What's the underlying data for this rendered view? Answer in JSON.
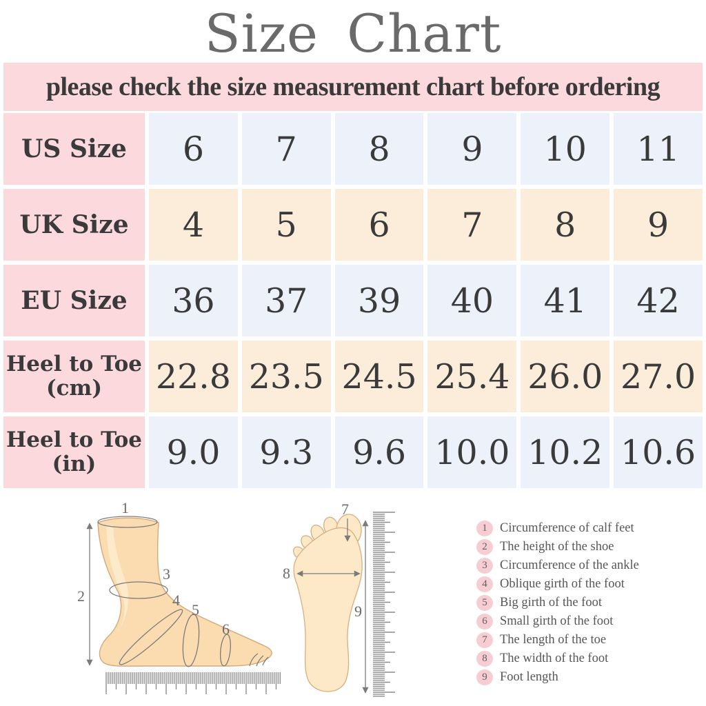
{
  "title": "Size Chart",
  "banner": {
    "text": "please check the size measurement chart before ordering"
  },
  "table": {
    "rows": [
      {
        "header_lines": [
          "US Size"
        ],
        "band": "blue",
        "values": [
          "6",
          "7",
          "8",
          "9",
          "10",
          "11"
        ]
      },
      {
        "header_lines": [
          "UK Size"
        ],
        "band": "peach",
        "values": [
          "4",
          "5",
          "6",
          "7",
          "8",
          "9"
        ]
      },
      {
        "header_lines": [
          "EU Size"
        ],
        "band": "blue",
        "values": [
          "36",
          "37",
          "39",
          "40",
          "41",
          "42"
        ]
      },
      {
        "header_lines": [
          "Heel to Toe",
          "(cm)"
        ],
        "band": "peach",
        "values": [
          "22.8",
          "23.5",
          "24.5",
          "25.4",
          "26.0",
          "27.0"
        ]
      },
      {
        "header_lines": [
          "Heel to Toe",
          "(in)"
        ],
        "band": "blue",
        "values": [
          "9.0",
          "9.3",
          "9.6",
          "10.0",
          "10.2",
          "10.6"
        ]
      }
    ]
  },
  "diagrams": {
    "side_view": {
      "markers": [
        "1",
        "2",
        "3",
        "4",
        "5",
        "6"
      ]
    },
    "sole_view": {
      "markers": [
        "7",
        "8",
        "9"
      ]
    }
  },
  "legend": {
    "items": [
      {
        "num": "1",
        "label": "Circumference of calf feet"
      },
      {
        "num": "2",
        "label": "The height of the shoe"
      },
      {
        "num": "3",
        "label": "Circumference of the ankle"
      },
      {
        "num": "4",
        "label": "Oblique girth of the foot"
      },
      {
        "num": "5",
        "label": "Big girth of the foot"
      },
      {
        "num": "6",
        "label": "Small girth of the foot"
      },
      {
        "num": "7",
        "label": "The length of the toe"
      },
      {
        "num": "8",
        "label": "The width of the foot"
      },
      {
        "num": "9",
        "label": "Foot length"
      }
    ]
  },
  "colors": {
    "pink": "#fbd9dd",
    "blue": "#ecf1fa",
    "peach": "#fcedda",
    "title": "#6a6a6a",
    "text": "#3a3a3a",
    "legend_circle": "#f6cdd3",
    "legend_text": "#565656",
    "foot_fill": "#fbdcb0",
    "foot_light": "#fde9c8"
  },
  "chart_data": {
    "type": "table",
    "title": "Size Chart",
    "note": "please check the size measurement chart before ordering",
    "rows": [
      {
        "label": "US Size",
        "values": [
          6,
          7,
          8,
          9,
          10,
          11
        ]
      },
      {
        "label": "UK Size",
        "values": [
          4,
          5,
          6,
          7,
          8,
          9
        ]
      },
      {
        "label": "EU Size",
        "values": [
          36,
          37,
          39,
          40,
          41,
          42
        ]
      },
      {
        "label": "Heel to Toe (cm)",
        "values": [
          22.8,
          23.5,
          24.5,
          25.4,
          26.0,
          27.0
        ]
      },
      {
        "label": "Heel to Toe (in)",
        "values": [
          9.0,
          9.3,
          9.6,
          10.0,
          10.2,
          10.6
        ]
      }
    ],
    "legend": [
      "Circumference of calf feet",
      "The height of the shoe",
      "Circumference of the ankle",
      "Oblique girth of the foot",
      "Big girth of the foot",
      "Small girth of the foot",
      "The length of the toe",
      "The width of the foot",
      "Foot length"
    ]
  }
}
